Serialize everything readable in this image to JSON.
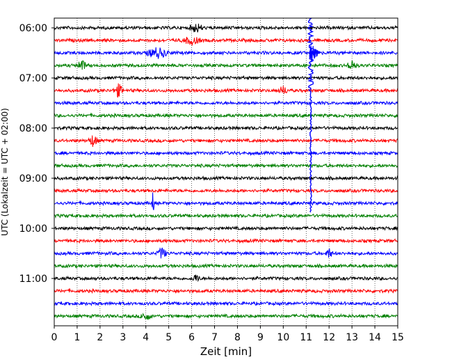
{
  "chart_data": {
    "type": "line",
    "title": "",
    "xlabel": "Zeit  [min]",
    "ylabel": "UTC (Lokalzeit = UTC + 02:00)",
    "xlim": [
      0,
      15
    ],
    "x_ticks": [
      0,
      1,
      2,
      3,
      4,
      5,
      6,
      7,
      8,
      9,
      10,
      11,
      12,
      13,
      14,
      15
    ],
    "x_tick_labels": [
      "0",
      "1",
      "2",
      "3",
      "4",
      "5",
      "6",
      "7",
      "8",
      "9",
      "10",
      "11",
      "12",
      "13",
      "14",
      "15"
    ],
    "y_tick_labels": [
      "06:00",
      "07:00",
      "08:00",
      "09:00",
      "10:00",
      "11:00"
    ],
    "y_tick_rows": [
      0,
      4,
      8,
      12,
      16,
      20
    ],
    "minutes_per_row": 15,
    "row_count": 24,
    "row_colors": [
      "#000000",
      "#ff0000",
      "#0000ff",
      "#008000"
    ],
    "vertical_grid": "dotted",
    "legend": "none",
    "events": [
      {
        "row": 0,
        "x": 6.2,
        "amp": 0.35,
        "width": 0.35
      },
      {
        "row": 1,
        "x": 6.0,
        "amp": 0.3,
        "width": 0.5
      },
      {
        "row": 2,
        "x": 4.5,
        "amp": 0.4,
        "width": 0.6
      },
      {
        "row": 3,
        "x": 1.2,
        "amp": 0.4,
        "width": 0.25
      },
      {
        "row": 3,
        "x": 13.0,
        "amp": 0.45,
        "width": 0.25
      },
      {
        "row": 5,
        "x": 2.8,
        "amp": 0.5,
        "width": 0.25
      },
      {
        "row": 5,
        "x": 10.0,
        "amp": 0.3,
        "width": 0.25
      },
      {
        "row": 9,
        "x": 1.7,
        "amp": 0.45,
        "width": 0.25
      },
      {
        "row": 14,
        "x": 4.3,
        "amp": 0.9,
        "width": 0.08
      },
      {
        "row": 18,
        "x": 4.7,
        "amp": 0.45,
        "width": 0.25
      },
      {
        "row": 18,
        "x": 12.0,
        "amp": 0.35,
        "width": 0.2
      },
      {
        "row": 20,
        "x": 6.2,
        "amp": 0.3,
        "width": 0.2
      },
      {
        "row": 23,
        "x": 4.0,
        "amp": 0.3,
        "width": 0.3
      }
    ],
    "main_event": {
      "x_minutes": 11.2,
      "row_start": 0,
      "row_end": 14,
      "burst_row": 2,
      "burst_x_end": 11.6,
      "color": "#0000ff"
    }
  }
}
